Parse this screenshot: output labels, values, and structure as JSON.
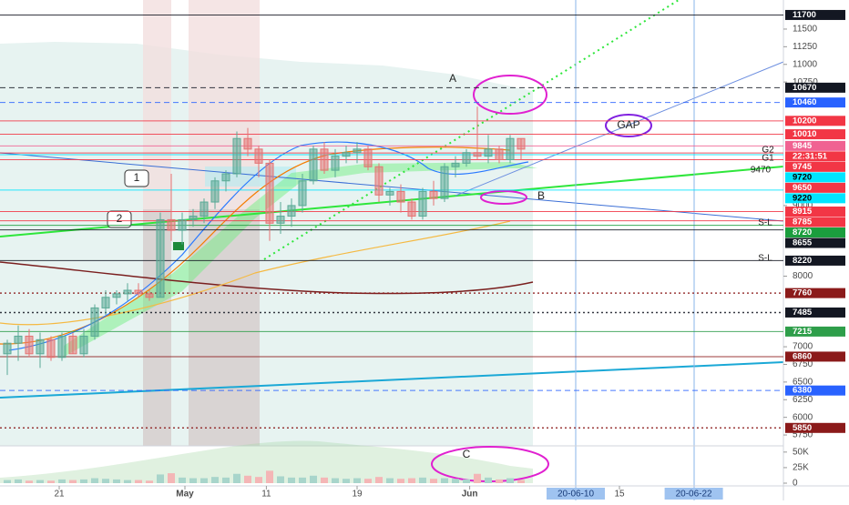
{
  "chart_data": {
    "type": "candlestick",
    "ylim": [
      5596,
      11912
    ],
    "yticks": [
      5750,
      6000,
      6250,
      6500,
      6750,
      7000,
      8000,
      9000,
      10750,
      11000,
      11250,
      11500
    ],
    "up_color": "#5aaa96",
    "down_color": "#e57373",
    "candles": {
      "open": [
        6900,
        7050,
        7150,
        6900,
        7100,
        6850,
        7150,
        6900,
        7150,
        7550,
        7700,
        7750,
        7800,
        7750,
        7700,
        8800,
        8650,
        8800,
        8850,
        9050,
        9350,
        9450,
        9950,
        9800,
        9600,
        8750,
        8850,
        9000,
        9350,
        9800,
        9500,
        9700,
        9750,
        9800,
        9550,
        9150,
        9200,
        9050,
        8850,
        9200,
        9100,
        9550,
        9600,
        9750,
        9700,
        9800,
        9650,
        9950
      ],
      "high": [
        7100,
        7300,
        7250,
        7200,
        7150,
        7200,
        7200,
        7250,
        7600,
        7800,
        7800,
        7900,
        7900,
        7800,
        8900,
        9450,
        8900,
        8950,
        9100,
        9400,
        9500,
        10050,
        10100,
        9850,
        9650,
        9050,
        9100,
        9450,
        9850,
        9900,
        9800,
        9850,
        9900,
        9850,
        9600,
        9250,
        9300,
        9100,
        9250,
        9350,
        9600,
        9700,
        9800,
        10400,
        10000,
        9850,
        10000,
        9950
      ],
      "low": [
        6600,
        6800,
        6850,
        6700,
        6800,
        6800,
        6900,
        6850,
        7100,
        7450,
        7600,
        7650,
        7700,
        7650,
        7700,
        8500,
        8450,
        8700,
        8750,
        8950,
        9200,
        9400,
        9700,
        9400,
        8500,
        8600,
        8700,
        8900,
        9300,
        9450,
        9400,
        9600,
        9600,
        9500,
        9050,
        9000,
        8900,
        8800,
        8800,
        9000,
        9050,
        9400,
        9550,
        9650,
        9600,
        9600,
        9600,
        9650
      ],
      "close": [
        7050,
        7150,
        6900,
        7100,
        6850,
        7150,
        6900,
        7150,
        7550,
        7700,
        7750,
        7800,
        7750,
        7700,
        8800,
        8650,
        8800,
        8850,
        9050,
        9350,
        9450,
        9950,
        9800,
        9600,
        8750,
        8850,
        9000,
        9350,
        9800,
        9500,
        9700,
        9750,
        9800,
        9550,
        9150,
        9200,
        9050,
        8850,
        9200,
        9100,
        9550,
        9600,
        9750,
        9700,
        9800,
        9650,
        9950,
        9800
      ]
    },
    "price_lines": [
      {
        "value": 11700,
        "color": "#131722",
        "style": "solid"
      },
      {
        "value": 10670,
        "color": "#131722",
        "style": "dashed"
      },
      {
        "value": 10460,
        "color": "#2962ff",
        "style": "dashed"
      },
      {
        "value": 10200,
        "color": "#f23645",
        "style": "solid"
      },
      {
        "value": 10010,
        "color": "#f23645",
        "style": "solid"
      },
      {
        "value": 9845,
        "color": "#f06292",
        "style": "solid"
      },
      {
        "value": 9745,
        "color": "#f23645",
        "style": "solid"
      },
      {
        "value": 9720,
        "color": "#00e5ff",
        "style": "solid"
      },
      {
        "value": 9650,
        "color": "#f23645",
        "style": "solid"
      },
      {
        "value": 9220,
        "color": "#00e5ff",
        "style": "solid"
      },
      {
        "value": 8915,
        "color": "#f23645",
        "style": "solid"
      },
      {
        "value": 8785,
        "color": "#f23645",
        "style": "solid"
      },
      {
        "value": 8720,
        "color": "#1b9e3e",
        "style": "solid"
      },
      {
        "value": 8655,
        "color": "#131722",
        "style": "solid"
      },
      {
        "value": 8220,
        "color": "#131722",
        "style": "solid"
      },
      {
        "value": 7760,
        "color": "#8b1a1a",
        "style": "dotted"
      },
      {
        "value": 7485,
        "color": "#131722",
        "style": "dotted"
      },
      {
        "value": 7215,
        "color": "#2e9e4a",
        "style": "solid"
      },
      {
        "value": 6860,
        "color": "#8b1a1a",
        "style": "solid"
      },
      {
        "value": 6380,
        "color": "#2962ff",
        "style": "dashed"
      },
      {
        "value": 5850,
        "color": "#8b1a1a",
        "style": "dotted"
      }
    ],
    "countdown": "22:31:51",
    "xticks": [
      {
        "value": 4.75,
        "label": "21"
      },
      {
        "value": 16.25,
        "label": "May"
      },
      {
        "value": 23.7,
        "label": "11"
      },
      {
        "value": 32,
        "label": "19"
      },
      {
        "value": 42.3,
        "label": "Jun"
      },
      {
        "value": 56,
        "label": "15"
      }
    ],
    "date_markers": [
      {
        "value": 52,
        "label": "20-06-10"
      },
      {
        "value": 62.8,
        "label": "20-06-22"
      }
    ],
    "volume": {
      "ylim": [
        0,
        60000
      ],
      "yticks": [
        {
          "value": 50000,
          "label": "50K"
        },
        {
          "value": 25000,
          "label": "25K"
        },
        0
      ],
      "values": [
        5000,
        6000,
        4000,
        5000,
        4000,
        6000,
        5000,
        6000,
        8000,
        7000,
        6000,
        5000,
        5000,
        4000,
        14000,
        16000,
        9000,
        8000,
        8000,
        10000,
        9000,
        15000,
        12000,
        10000,
        20000,
        11000,
        9000,
        9000,
        12000,
        9000,
        8000,
        7000,
        8000,
        7000,
        10000,
        8000,
        7000,
        8000,
        9000,
        7000,
        8000,
        7000,
        6000,
        15000,
        9000,
        6000,
        8000,
        5000
      ]
    },
    "annotations": [
      "A",
      "B",
      "C",
      "GAP",
      "1",
      "2",
      "G2",
      "G1",
      "9470",
      "S-L",
      "S-L"
    ]
  }
}
